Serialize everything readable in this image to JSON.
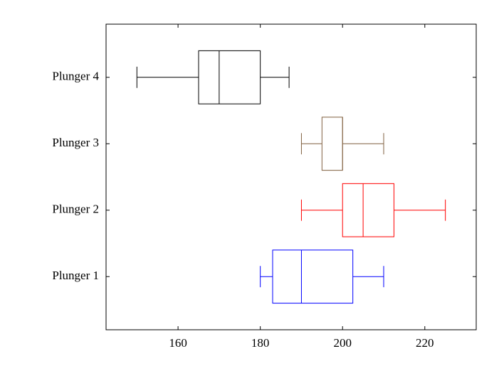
{
  "chart_data": {
    "type": "boxplot",
    "categories": [
      "Plunger 1",
      "Plunger 2",
      "Plunger 3",
      "Plunger 4"
    ],
    "min": [
      180,
      190,
      190,
      150
    ],
    "q1": [
      183,
      200,
      195,
      165
    ],
    "median": [
      190,
      205,
      200,
      170
    ],
    "q3": [
      202.5,
      212.5,
      200,
      180
    ],
    "max": [
      210,
      225,
      210,
      187
    ],
    "colors": [
      "#0000ff",
      "#ff0000",
      "#806040",
      "#000000"
    ],
    "xlim": [
      142.5,
      232.5
    ],
    "xticks": [
      160,
      180,
      200,
      220
    ]
  }
}
